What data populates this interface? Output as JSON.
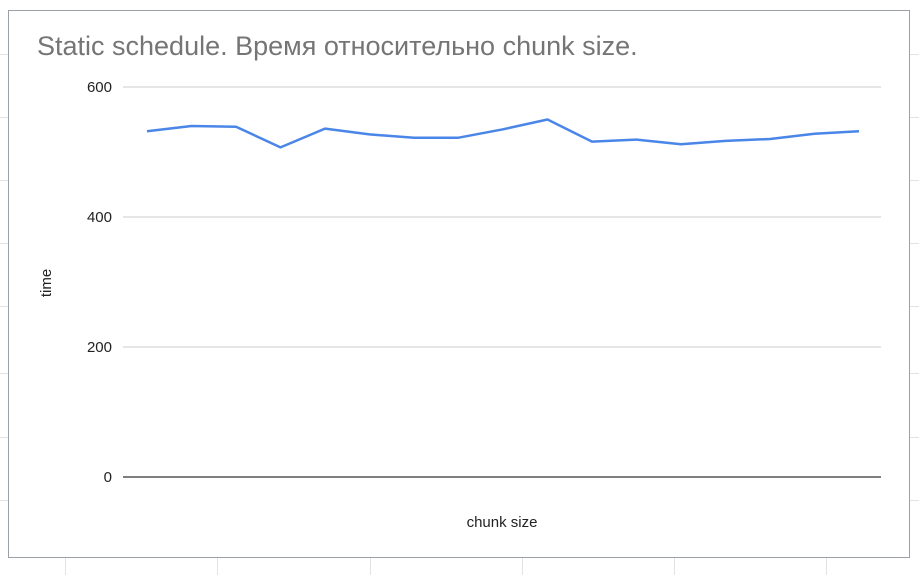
{
  "chart_data": {
    "type": "line",
    "title": "Static schedule. Время относительно chunk size.",
    "xlabel": "chunk size",
    "ylabel": "time",
    "ylim": [
      0,
      600
    ],
    "yticks": [
      "0",
      "200",
      "400",
      "600"
    ],
    "grid": true,
    "legend": "none",
    "series": [
      {
        "color": "#4a86e8",
        "values": [
          532,
          540,
          539,
          507,
          536,
          527,
          522,
          522,
          535,
          550,
          516,
          519,
          512,
          517,
          520,
          528,
          532
        ]
      }
    ]
  }
}
